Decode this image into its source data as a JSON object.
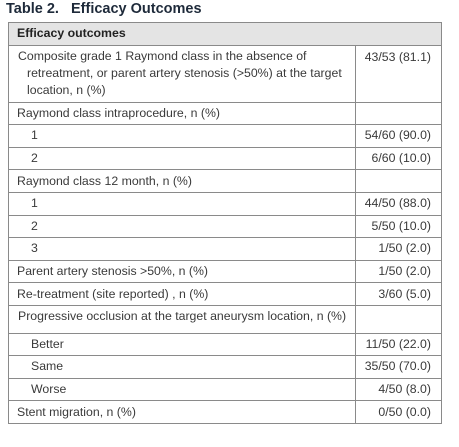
{
  "title": "Table 2.   Efficacy Outcomes",
  "table": {
    "header": "Efficacy outcomes",
    "rows": [
      {
        "label": "Composite grade 1 Raymond class in the absence of retreatment, or parent artery stenosis (>50%) at the target location, n (%)",
        "value": "43/53 (81.1)"
      },
      {
        "label": "Raymond class intraprocedure, n (%)",
        "items": [
          {
            "label": "1",
            "value": "54/60 (90.0)"
          },
          {
            "label": "2",
            "value": "6/60 (10.0)"
          }
        ]
      },
      {
        "label": "Raymond class 12 month, n (%)",
        "items": [
          {
            "label": "1",
            "value": "44/50 (88.0)"
          },
          {
            "label": "2",
            "value": "5/50 (10.0)"
          },
          {
            "label": "3",
            "value": "1/50 (2.0)"
          }
        ]
      },
      {
        "label": "Parent artery stenosis >50%, n (%)",
        "value": "1/50 (2.0)"
      },
      {
        "label": "Re-treatment (site reported) , n (%)",
        "value": "3/60 (5.0)"
      },
      {
        "label": "Progressive occlusion at the target aneurysm location, n (%)",
        "items": [
          {
            "label": "Better",
            "value": "11/50 (22.0)"
          },
          {
            "label": "Same",
            "value": "35/50 (70.0)"
          },
          {
            "label": "Worse",
            "value": "4/50 (8.0)"
          }
        ]
      },
      {
        "label": "Stent migration, n (%)",
        "value": "0/50 (0.0)"
      }
    ]
  }
}
